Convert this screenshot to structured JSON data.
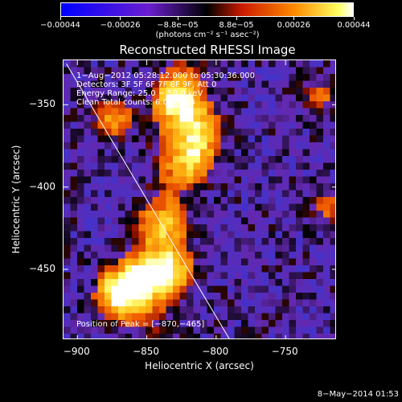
{
  "chart_data": {
    "type": "heatmap",
    "title": "Reconstructed RHESSI Image",
    "xlabel": "Heliocentric X (arcsec)",
    "ylabel": "Heliocentric Y (arcsec)",
    "xlim": [
      -910,
      -713
    ],
    "ylim": [
      -493,
      -323
    ],
    "x_ticks": [
      -900,
      -850,
      -800,
      -750
    ],
    "y_ticks": [
      -350,
      -400,
      -450
    ],
    "x_tick_labels": [
      "−900",
      "−850",
      "−800",
      "−750"
    ],
    "y_tick_labels": [
      "−350",
      "−400",
      "−450"
    ],
    "colorbar": {
      "ticks": [
        -0.00044,
        -0.00026,
        -8.8e-05,
        8.8e-05,
        0.00026,
        0.00044
      ],
      "tick_labels": [
        "−0.00044",
        "−0.00026",
        "−8.8e−05",
        "8.8e−05",
        "0.00026",
        "0.00044"
      ],
      "units": "(photons cm⁻² s⁻¹ asec⁻²)",
      "colors": [
        "#0000ff",
        "#6a1ecf",
        "#000000",
        "#cc1a00",
        "#ff8a00",
        "#ffff60",
        "#ffffff"
      ]
    },
    "annotations": {
      "time": "1−Aug−2012 05:28:12.000 to 05:30:36.000",
      "detectors": "Detectors: 3F 5F 6F 7F 8F 9F, Att 0",
      "energy": "Energy Range: 25.0 − 50.0 keV",
      "method": "Clean     Total counts: 6.02E+03",
      "peak": "Position of Peak = [−870,−465]"
    },
    "bright_sources": [
      {
        "x": -870,
        "y": -465,
        "intensity": 1.0
      },
      {
        "x": -855,
        "y": -457,
        "intensity": 0.85
      },
      {
        "x": -835,
        "y": -450,
        "intensity": 0.7
      },
      {
        "x": -827,
        "y": -348,
        "intensity": 0.85
      },
      {
        "x": -812,
        "y": -367,
        "intensity": 0.6
      },
      {
        "x": -818,
        "y": -384,
        "intensity": 0.55
      },
      {
        "x": -875,
        "y": -358,
        "intensity": 0.5
      },
      {
        "x": -840,
        "y": -424,
        "intensity": 0.45
      },
      {
        "x": -725,
        "y": -345,
        "intensity": 0.35
      },
      {
        "x": -720,
        "y": -412,
        "intensity": 0.35
      }
    ],
    "limb_line": {
      "x": [
        -908,
        -790
      ],
      "y": [
        -325,
        -493
      ]
    },
    "date_stamp": "8−May−2014 01:53"
  }
}
